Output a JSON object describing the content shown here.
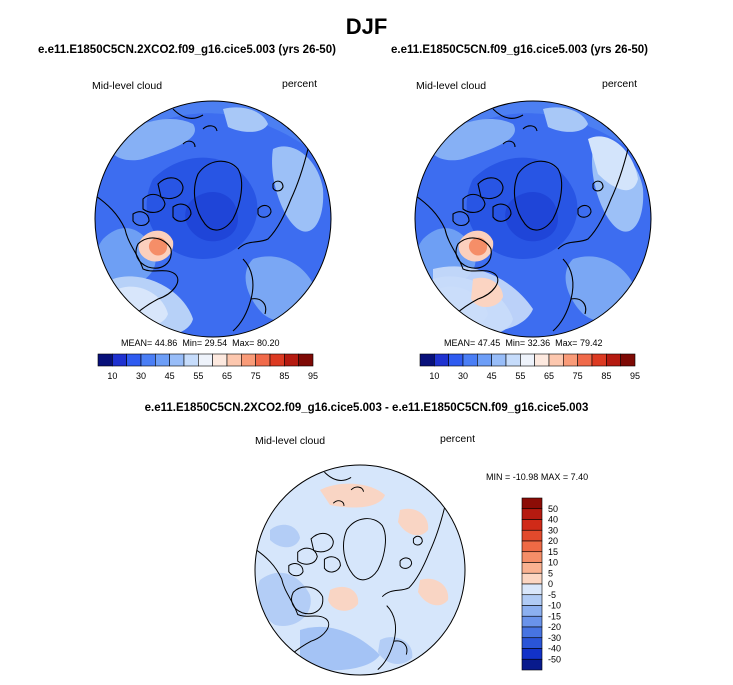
{
  "title": "DJF",
  "panels": [
    {
      "case": "e.e11.E1850C5CN.2XCO2.f09_g16.cice5.003 (yrs 26-50)",
      "variable": "Mid-level cloud",
      "units": "percent",
      "stats": {
        "mean_label": "MEAN=",
        "mean": "44.86",
        "min_label": "Min=",
        "min": "29.54",
        "max_label": "Max=",
        "max": "80.20"
      }
    },
    {
      "case": "e.e11.E1850C5CN.f09_g16.cice5.003 (yrs 26-50)",
      "variable": "Mid-level cloud",
      "units": "percent",
      "stats": {
        "mean_label": "MEAN=",
        "mean": "47.45",
        "min_label": "Min=",
        "min": "32.36",
        "max_label": "Max=",
        "max": "79.42"
      }
    }
  ],
  "colorbar_main": {
    "labels": [
      "10",
      "30",
      "45",
      "55",
      "65",
      "75",
      "85",
      "95"
    ],
    "colors": [
      "#08107a",
      "#1f32d0",
      "#2f5bf0",
      "#4a7ef5",
      "#6d9ef7",
      "#98bdf8",
      "#c6dcfb",
      "#eef3fb",
      "#fde9df",
      "#fcc7ae",
      "#f99b78",
      "#f06a4a",
      "#dc3a22",
      "#b51a10",
      "#7e0a05"
    ]
  },
  "difference": {
    "title": "e.e11.E1850C5CN.2XCO2.f09_g16.cice5.003 - e.e11.E1850C5CN.f09_g16.cice5.003",
    "variable": "Mid-level cloud",
    "units": "percent",
    "stats": {
      "min_label": "MIN =",
      "min": "-10.98",
      "max_label": "MAX =",
      "max": "7.40"
    },
    "colorbar": {
      "labels": [
        "50",
        "40",
        "30",
        "20",
        "15",
        "10",
        "5",
        "0",
        "-5",
        "-10",
        "-15",
        "-20",
        "-30",
        "-40",
        "-50"
      ],
      "colors": [
        "#8c0c06",
        "#b51a10",
        "#d02a18",
        "#e24a2c",
        "#ee6a45",
        "#f58e68",
        "#fab291",
        "#fcd6c2",
        "#d9e7fb",
        "#b0cbf5",
        "#8cb0f0",
        "#6a93ea",
        "#4774e2",
        "#2a55d8",
        "#1232c8",
        "#081a8c"
      ]
    }
  },
  "colors": {
    "ocean_low": "#2a5ee8",
    "mid": "#6f9ff2",
    "land_line": "#000000"
  }
}
